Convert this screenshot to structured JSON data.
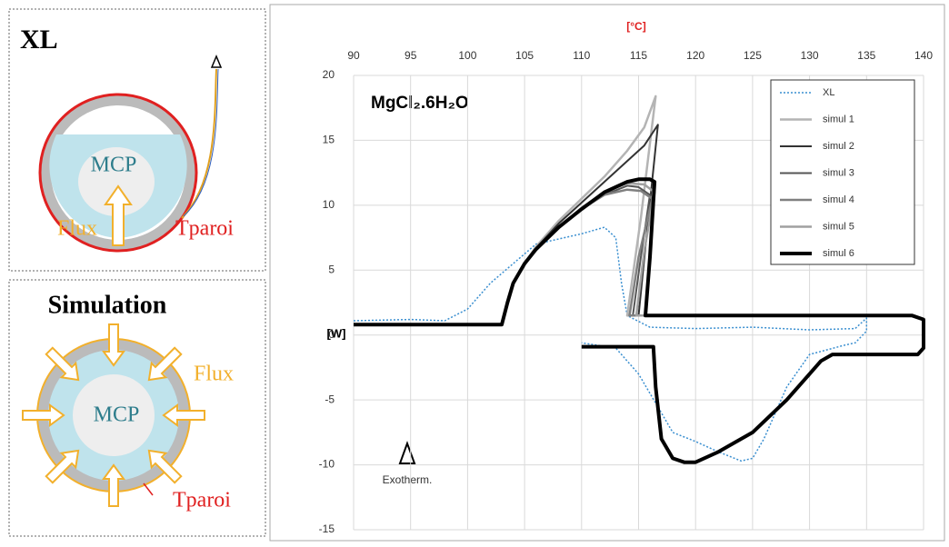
{
  "panels": [
    {
      "title": "XL",
      "core": "MCP",
      "flux": "Flux",
      "wall": "Tparoi"
    },
    {
      "title": "Simulation",
      "core": "MCP",
      "flux": "Flux",
      "wall": "Tparoi"
    }
  ],
  "chart_data": {
    "type": "line",
    "x_label": "[°C]",
    "y_label": "[W]",
    "annotation": "MgCl₂.6H₂O",
    "note": "Exotherm.",
    "xlim": [
      90,
      140
    ],
    "xticks": [
      90,
      95,
      100,
      105,
      110,
      115,
      120,
      125,
      130,
      135,
      140
    ],
    "ylim": [
      -15,
      20
    ],
    "yticks": [
      -15,
      -10,
      -5,
      0,
      5,
      10,
      15,
      20
    ],
    "grid": true,
    "legend": "top-right",
    "series": [
      {
        "name": "XL",
        "color": "#3a8fd0",
        "dashed": true,
        "line_width": 1.5,
        "x": [
          90,
          95,
          98,
          100,
          102,
          104,
          106,
          108,
          110,
          112,
          113,
          113.5,
          114,
          116,
          120,
          125,
          130,
          134,
          135,
          135,
          134,
          133,
          130,
          128,
          126,
          125,
          124,
          122,
          120,
          118,
          117,
          115,
          113,
          110
        ],
        "values": [
          1.1,
          1.2,
          1.1,
          2,
          4,
          5.5,
          7,
          7.4,
          7.8,
          8.3,
          7.5,
          4,
          1.5,
          0.6,
          0.5,
          0.6,
          0.4,
          0.5,
          1.3,
          0.3,
          -0.6,
          -0.8,
          -1.5,
          -4,
          -8,
          -9.5,
          -9.7,
          -9,
          -8.2,
          -7.5,
          -6,
          -3,
          -1,
          -0.6
        ]
      },
      {
        "name": "simul 1",
        "color": "#b4b4b4",
        "dashed": false,
        "line_width": 2.5,
        "x": [
          90,
          103,
          103.5,
          104,
          105,
          106,
          108,
          110,
          112,
          114,
          115.5,
          116.5,
          115.2,
          114,
          116
        ],
        "values": [
          0.8,
          0.8,
          2.5,
          4,
          5.5,
          6.8,
          8.8,
          10.5,
          12.2,
          14.2,
          16,
          18.4,
          9,
          1.5,
          1.5
        ]
      },
      {
        "name": "simul 2",
        "color": "#333333",
        "dashed": false,
        "line_width": 2,
        "x": [
          90,
          103,
          103.5,
          104,
          105,
          106,
          108,
          110,
          112,
          114,
          115.5,
          116.7,
          115.8,
          115,
          116
        ],
        "values": [
          0.8,
          0.8,
          2.5,
          4,
          5.5,
          6.7,
          8.6,
          10.2,
          11.8,
          13.4,
          14.6,
          16.2,
          8.5,
          1.5,
          1.5
        ]
      },
      {
        "name": "simul 3",
        "color": "#555555",
        "dashed": false,
        "line_width": 2,
        "x": [
          90,
          103,
          103.5,
          104,
          105,
          106,
          108,
          110,
          112,
          114,
          115,
          116,
          115.2,
          114.5,
          116
        ],
        "values": [
          0.8,
          0.8,
          2.5,
          4,
          5.5,
          6.6,
          8.3,
          9.7,
          10.8,
          11.5,
          11.4,
          10.8,
          6,
          1.5,
          1.5
        ]
      },
      {
        "name": "simul 4",
        "color": "#808080",
        "dashed": false,
        "line_width": 2.5,
        "x": [
          90,
          103,
          103.5,
          104,
          105,
          106,
          108,
          110,
          112,
          114,
          115.2,
          116.2,
          115,
          114.2,
          116
        ],
        "values": [
          0.8,
          0.8,
          2.5,
          4,
          5.5,
          6.6,
          8.3,
          9.7,
          10.8,
          11.2,
          11.1,
          10.5,
          6,
          1.5,
          1.5
        ]
      },
      {
        "name": "simul 5",
        "color": "#a0a0a0",
        "dashed": false,
        "line_width": 2.5,
        "x": [
          90,
          103,
          103.5,
          104,
          105,
          106,
          108,
          110,
          112,
          114,
          115.5,
          116.4,
          115.5,
          114.8,
          116
        ],
        "values": [
          0.8,
          0.8,
          2.5,
          4,
          5.5,
          6.6,
          8.3,
          9.8,
          11,
          11.7,
          11.6,
          11,
          6.5,
          1.5,
          1.5
        ]
      },
      {
        "name": "simul 6",
        "color": "#000000",
        "dashed": false,
        "line_width": 4,
        "x": [
          90,
          103,
          103.5,
          104,
          105,
          106,
          108,
          110,
          112,
          114,
          115,
          116,
          116.4,
          116,
          115.6,
          139,
          140,
          140,
          139.5,
          132,
          131,
          130,
          128,
          125,
          122,
          120,
          119,
          118,
          117,
          116.5,
          116.3,
          110
        ],
        "values": [
          0.8,
          0.8,
          2.5,
          4,
          5.5,
          6.6,
          8.3,
          9.7,
          11,
          11.8,
          12,
          12,
          11.8,
          6,
          1.5,
          1.5,
          1.2,
          -1,
          -1.5,
          -1.5,
          -2,
          -3,
          -5,
          -7.5,
          -9,
          -9.8,
          -9.8,
          -9.5,
          -8,
          -4,
          -0.9,
          -0.9
        ]
      }
    ]
  }
}
